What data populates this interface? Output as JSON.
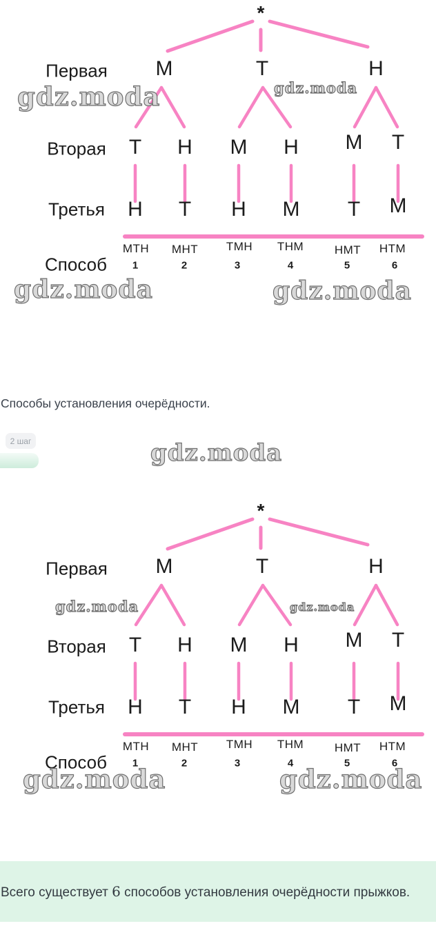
{
  "colors": {
    "branch_pink": "#f783c3",
    "letter_black": "#1b1b1b",
    "watermark_gray": "#6e6e6e",
    "answer_bg_mint": "#def4e7",
    "badge_bg": "#f1f2f4"
  },
  "tree": {
    "root_symbol": "*",
    "row_labels": {
      "first": "Первая",
      "second": "Вторая",
      "third": "Третья",
      "way": "Способ"
    },
    "level1": [
      "М",
      "Т",
      "Н"
    ],
    "level2": [
      "Т",
      "Н",
      "М",
      "Н",
      "М",
      "Т"
    ],
    "level3": [
      "Н",
      "Т",
      "Н",
      "М",
      "Т",
      "М"
    ],
    "combinations": [
      "МТН",
      "МНТ",
      "ТМН",
      "ТНМ",
      "НМТ",
      "НТМ"
    ],
    "way_numbers": [
      "1",
      "2",
      "3",
      "4",
      "5",
      "6"
    ]
  },
  "watermark": {
    "text": "gdz.moda"
  },
  "caption": {
    "text": "Способы установления очерёдности."
  },
  "step_badge": {
    "label": "2 шаг"
  },
  "answer": {
    "before": "Всего существует ",
    "count": "6",
    "after": " способов установления очерёдности прыжков."
  }
}
